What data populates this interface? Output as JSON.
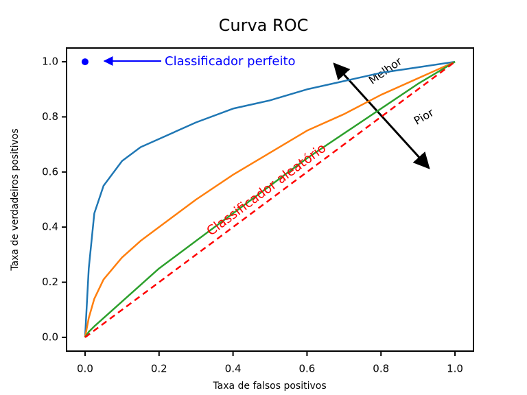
{
  "chart_data": {
    "type": "line",
    "title": "Curva ROC",
    "xlabel": "Taxa de falsos positivos",
    "ylabel": "Taxa de verdadeiros positivos",
    "x": [
      0,
      0.01,
      0.025,
      0.05,
      0.1,
      0.15,
      0.2,
      0.3,
      0.4,
      0.5,
      0.6,
      0.7,
      0.8,
      0.9,
      1.0
    ],
    "series": [
      {
        "color": "#1f77b4",
        "values": [
          0,
          0.25,
          0.45,
          0.55,
          0.64,
          0.69,
          0.72,
          0.78,
          0.83,
          0.86,
          0.9,
          0.93,
          0.96,
          0.98,
          1.0
        ]
      },
      {
        "color": "#ff7f0e",
        "values": [
          0,
          0.07,
          0.14,
          0.21,
          0.29,
          0.35,
          0.4,
          0.5,
          0.59,
          0.67,
          0.75,
          0.81,
          0.88,
          0.94,
          1.0
        ]
      },
      {
        "color": "#2ca02c",
        "values": [
          0,
          0.02,
          0.04,
          0.07,
          0.13,
          0.19,
          0.25,
          0.35,
          0.45,
          0.55,
          0.65,
          0.74,
          0.83,
          0.92,
          1.0
        ]
      },
      {
        "name": "Classificador aleatório",
        "color": "#ff0000",
        "dashed": true,
        "values": [
          0,
          0.01,
          0.025,
          0.05,
          0.1,
          0.15,
          0.2,
          0.3,
          0.4,
          0.5,
          0.6,
          0.7,
          0.8,
          0.9,
          1.0
        ]
      }
    ],
    "perfect_classifier": {
      "label": "Classificador perfeito",
      "x": 0,
      "y": 1,
      "color": "#0000ff"
    },
    "annotations": {
      "better": "Melhor",
      "worse": "Pior"
    },
    "xlim": [
      -0.05,
      1.05
    ],
    "ylim": [
      -0.05,
      1.05
    ],
    "xticks": [
      {
        "value": 0,
        "label": "0.0"
      },
      0.2,
      0.4,
      0.6,
      0.8,
      {
        "value": 1,
        "label": "1.0"
      }
    ],
    "yticks": [
      {
        "value": 0,
        "label": "0.0"
      },
      0.2,
      0.4,
      0.6,
      0.8,
      {
        "value": 1,
        "label": "1.0"
      }
    ],
    "grid": false
  }
}
